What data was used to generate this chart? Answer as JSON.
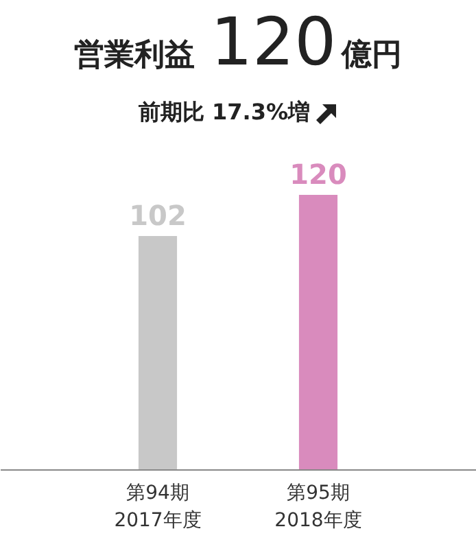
{
  "chart_data": {
    "type": "bar",
    "title": "営業利益 120億円",
    "subtitle": "前期比 17.3%増",
    "categories": [
      "第94期\n2017年度",
      "第95期\n2018年度"
    ],
    "values": [
      102,
      120
    ],
    "colors": [
      "#c8c8c8",
      "#d98bbd"
    ],
    "data_labels": true
  }
}
